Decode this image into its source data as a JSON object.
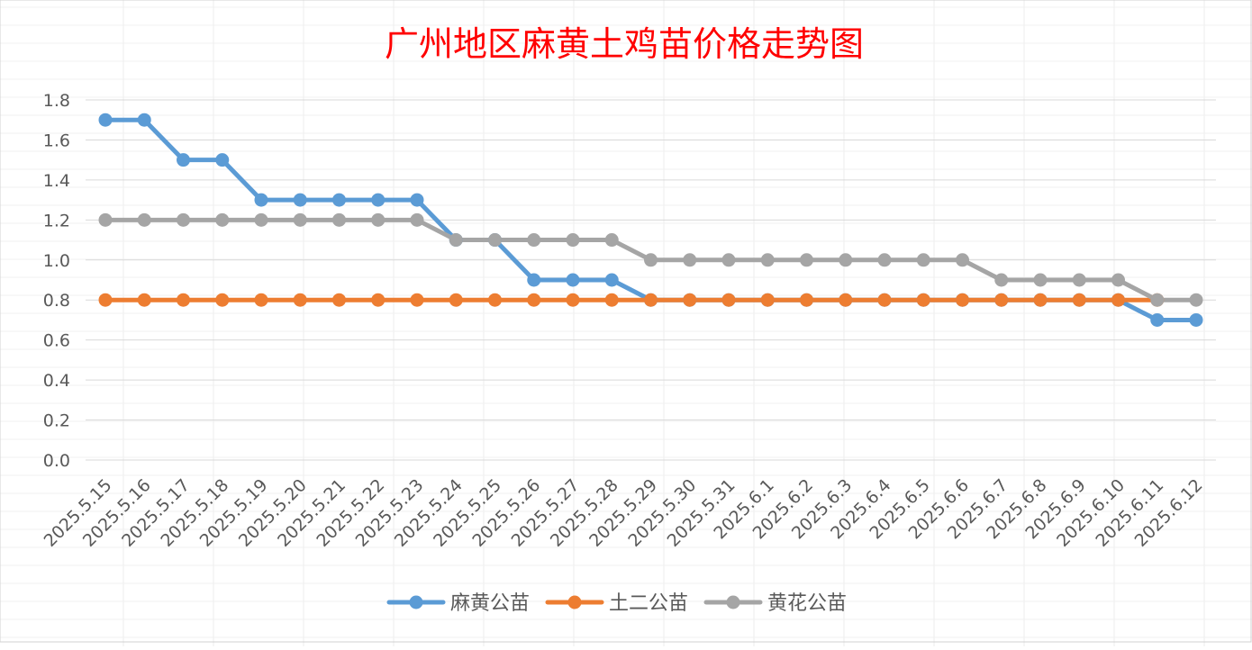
{
  "chart_data": {
    "type": "line",
    "title": "广州地区麻黄土鸡苗价格走势图",
    "x": [
      "2025.5.15",
      "2025.5.16",
      "2025.5.17",
      "2025.5.18",
      "2025.5.19",
      "2025.5.20",
      "2025.5.21",
      "2025.5.22",
      "2025.5.23",
      "2025.5.24",
      "2025.5.25",
      "2025.5.26",
      "2025.5.27",
      "2025.5.28",
      "2025.5.29",
      "2025.5.30",
      "2025.5.31",
      "2025.6.1",
      "2025.6.2",
      "2025.6.3",
      "2025.6.4",
      "2025.6.5",
      "2025.6.6",
      "2025.6.7",
      "2025.6.8",
      "2025.6.9",
      "2025.6.10",
      "2025.6.11",
      "2025.6.12"
    ],
    "yticks": [
      "0.0",
      "0.2",
      "0.4",
      "0.6",
      "0.8",
      "1.0",
      "1.2",
      "1.4",
      "1.6",
      "1.8"
    ],
    "ylim": [
      0,
      1.8
    ],
    "grid": true,
    "legend_position": "bottom",
    "series": [
      {
        "name": "麻黄公苗",
        "color": "#5b9bd5",
        "values": [
          1.7,
          1.7,
          1.5,
          1.5,
          1.3,
          1.3,
          1.3,
          1.3,
          1.3,
          1.1,
          1.1,
          0.9,
          0.9,
          0.9,
          0.8,
          0.8,
          0.8,
          0.8,
          0.8,
          0.8,
          0.8,
          0.8,
          0.8,
          0.8,
          0.8,
          0.8,
          0.8,
          0.7,
          0.7
        ]
      },
      {
        "name": "土二公苗",
        "color": "#ed7d31",
        "values": [
          0.8,
          0.8,
          0.8,
          0.8,
          0.8,
          0.8,
          0.8,
          0.8,
          0.8,
          0.8,
          0.8,
          0.8,
          0.8,
          0.8,
          0.8,
          0.8,
          0.8,
          0.8,
          0.8,
          0.8,
          0.8,
          0.8,
          0.8,
          0.8,
          0.8,
          0.8,
          0.8,
          0.8,
          null
        ]
      },
      {
        "name": "黄花公苗",
        "color": "#a5a5a5",
        "values": [
          1.2,
          1.2,
          1.2,
          1.2,
          1.2,
          1.2,
          1.2,
          1.2,
          1.2,
          1.1,
          1.1,
          1.1,
          1.1,
          1.1,
          1.0,
          1.0,
          1.0,
          1.0,
          1.0,
          1.0,
          1.0,
          1.0,
          1.0,
          0.9,
          0.9,
          0.9,
          0.9,
          0.8,
          0.8
        ]
      }
    ],
    "title_color": "#ff0000"
  }
}
